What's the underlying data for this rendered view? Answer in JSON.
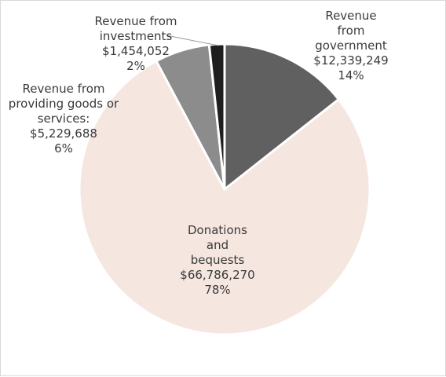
{
  "chart_data": {
    "type": "pie",
    "title": "",
    "start_angle_deg": 0,
    "direction": "clockwise",
    "slices": [
      {
        "key": "government",
        "label_lines": [
          "Revenue",
          "from",
          "government"
        ],
        "value_text": "$12,339,249",
        "percent_text": "14%",
        "value": 12339249,
        "color": "#606060"
      },
      {
        "key": "donations",
        "label_lines": [
          "Donations",
          "and",
          "bequests"
        ],
        "value_text": "$66,786,270",
        "percent_text": "78%",
        "value": 66786270,
        "color": "#f5e6e0"
      },
      {
        "key": "goods",
        "label_lines": [
          "Revenue from",
          "providing goods or",
          "services:"
        ],
        "value_text": "$5,229,688",
        "percent_text": "6%",
        "value": 5229688,
        "color": "#8c8c8c"
      },
      {
        "key": "investments",
        "label_lines": [
          "Revenue from",
          "investments"
        ],
        "value_text": "$1,454,052",
        "percent_text": "2%",
        "value": 1454052,
        "color": "#1e1e1e"
      }
    ]
  }
}
